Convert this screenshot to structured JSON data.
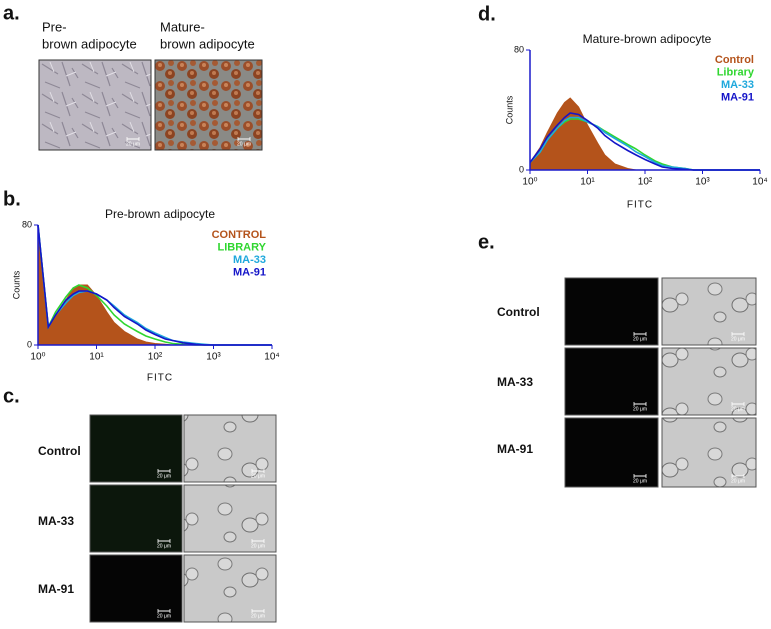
{
  "panels": {
    "a": {
      "label": "a.",
      "captions": [
        [
          "Pre-",
          "brown adipocyte"
        ],
        [
          "Mature-",
          "brown adipocyte"
        ]
      ]
    },
    "b": {
      "label": "b."
    },
    "c": {
      "label": "c.",
      "rows": [
        "Control",
        "MA-33",
        "MA-91"
      ]
    },
    "d": {
      "label": "d."
    },
    "e": {
      "label": "e.",
      "rows": [
        "Control",
        "MA-33",
        "MA-91"
      ]
    },
    "scale_bar": "20 μm"
  },
  "chart_data": [
    {
      "type": "histogram-overlay",
      "title": "Pre-brown adipocyte",
      "x_label": "FITC",
      "y_label": "Counts",
      "log_x": true,
      "x": [
        1,
        1.5,
        2,
        3,
        4,
        5,
        7,
        10,
        15,
        20,
        30,
        50,
        70,
        100,
        150,
        200,
        300,
        500,
        700,
        1000,
        2000,
        5000,
        10000
      ],
      "xlim": [
        1,
        10000
      ],
      "xticks": [
        {
          "value": 1,
          "label": "10⁰"
        },
        {
          "value": 10,
          "label": "10¹"
        },
        {
          "value": 100,
          "label": "10²"
        },
        {
          "value": 1000,
          "label": "10³"
        },
        {
          "value": 10000,
          "label": "10⁴"
        }
      ],
      "ylim": [
        0,
        80
      ],
      "yticks": [
        0,
        80
      ],
      "legend": "upper right",
      "series": [
        {
          "name": "CONTROL",
          "color": "#b4531b",
          "fill": true,
          "values": [
            75,
            10,
            20,
            30,
            38,
            40,
            40,
            33,
            22,
            15,
            9,
            4,
            2,
            1,
            0.5,
            0,
            0,
            0,
            0,
            0,
            0,
            0,
            0
          ]
        },
        {
          "name": "LIBRARY",
          "color": "#2fd62f",
          "fill": false,
          "values": [
            80,
            12,
            22,
            32,
            38,
            40,
            38,
            33,
            26,
            20,
            14,
            9,
            6,
            4,
            2,
            1,
            0.5,
            0,
            0,
            0,
            0,
            0,
            0
          ]
        },
        {
          "name": "MA-33",
          "color": "#1fa8dc",
          "fill": false,
          "values": [
            80,
            12,
            20,
            28,
            33,
            35,
            36,
            34,
            30,
            26,
            20,
            15,
            11,
            8,
            5,
            3,
            2,
            1,
            0.5,
            0,
            0,
            0,
            0
          ]
        },
        {
          "name": "MA-91",
          "color": "#1414c8",
          "fill": false,
          "values": [
            80,
            12,
            20,
            30,
            34,
            36,
            36,
            34,
            30,
            25,
            19,
            14,
            10,
            7,
            4,
            3,
            1.5,
            0.5,
            0,
            0,
            0,
            0,
            0
          ]
        }
      ]
    },
    {
      "type": "histogram-overlay",
      "title": "Mature-brown adipocyte",
      "x_label": "FITC",
      "y_label": "Counts",
      "log_x": true,
      "x": [
        1,
        1.5,
        2,
        3,
        4,
        5,
        7,
        10,
        15,
        20,
        30,
        50,
        70,
        100,
        150,
        200,
        300,
        500,
        700,
        1000,
        2000,
        5000,
        10000
      ],
      "xlim": [
        1,
        10000
      ],
      "xticks": [
        {
          "value": 1,
          "label": "10⁰"
        },
        {
          "value": 10,
          "label": "10¹"
        },
        {
          "value": 100,
          "label": "10²"
        },
        {
          "value": 1000,
          "label": "10³"
        },
        {
          "value": 10000,
          "label": "10⁴"
        }
      ],
      "ylim": [
        0,
        80
      ],
      "yticks": [
        0,
        80
      ],
      "legend": "upper right",
      "series": [
        {
          "name": "Control",
          "color": "#b4531b",
          "fill": true,
          "values": [
            5,
            15,
            25,
            38,
            45,
            48,
            42,
            30,
            18,
            10,
            4,
            1,
            0,
            0,
            0,
            0,
            0,
            0,
            0,
            0,
            0,
            0,
            0
          ]
        },
        {
          "name": "Library",
          "color": "#2fd62f",
          "fill": false,
          "values": [
            5,
            12,
            20,
            28,
            32,
            34,
            34,
            32,
            29,
            26,
            22,
            17,
            14,
            10,
            6,
            4,
            2,
            1,
            0,
            0,
            0,
            0,
            0
          ]
        },
        {
          "name": "MA-33",
          "color": "#1fa8dc",
          "fill": false,
          "values": [
            5,
            12,
            20,
            28,
            33,
            35,
            35,
            32,
            29,
            25,
            21,
            16,
            12,
            9,
            5,
            3,
            2,
            1,
            0,
            0,
            0,
            0,
            0
          ]
        },
        {
          "name": "MA-91",
          "color": "#1414c8",
          "fill": false,
          "values": [
            5,
            14,
            22,
            30,
            35,
            38,
            37,
            33,
            28,
            23,
            18,
            13,
            10,
            7,
            4,
            2,
            1,
            0.5,
            0,
            0,
            0,
            0,
            0
          ]
        }
      ]
    }
  ]
}
